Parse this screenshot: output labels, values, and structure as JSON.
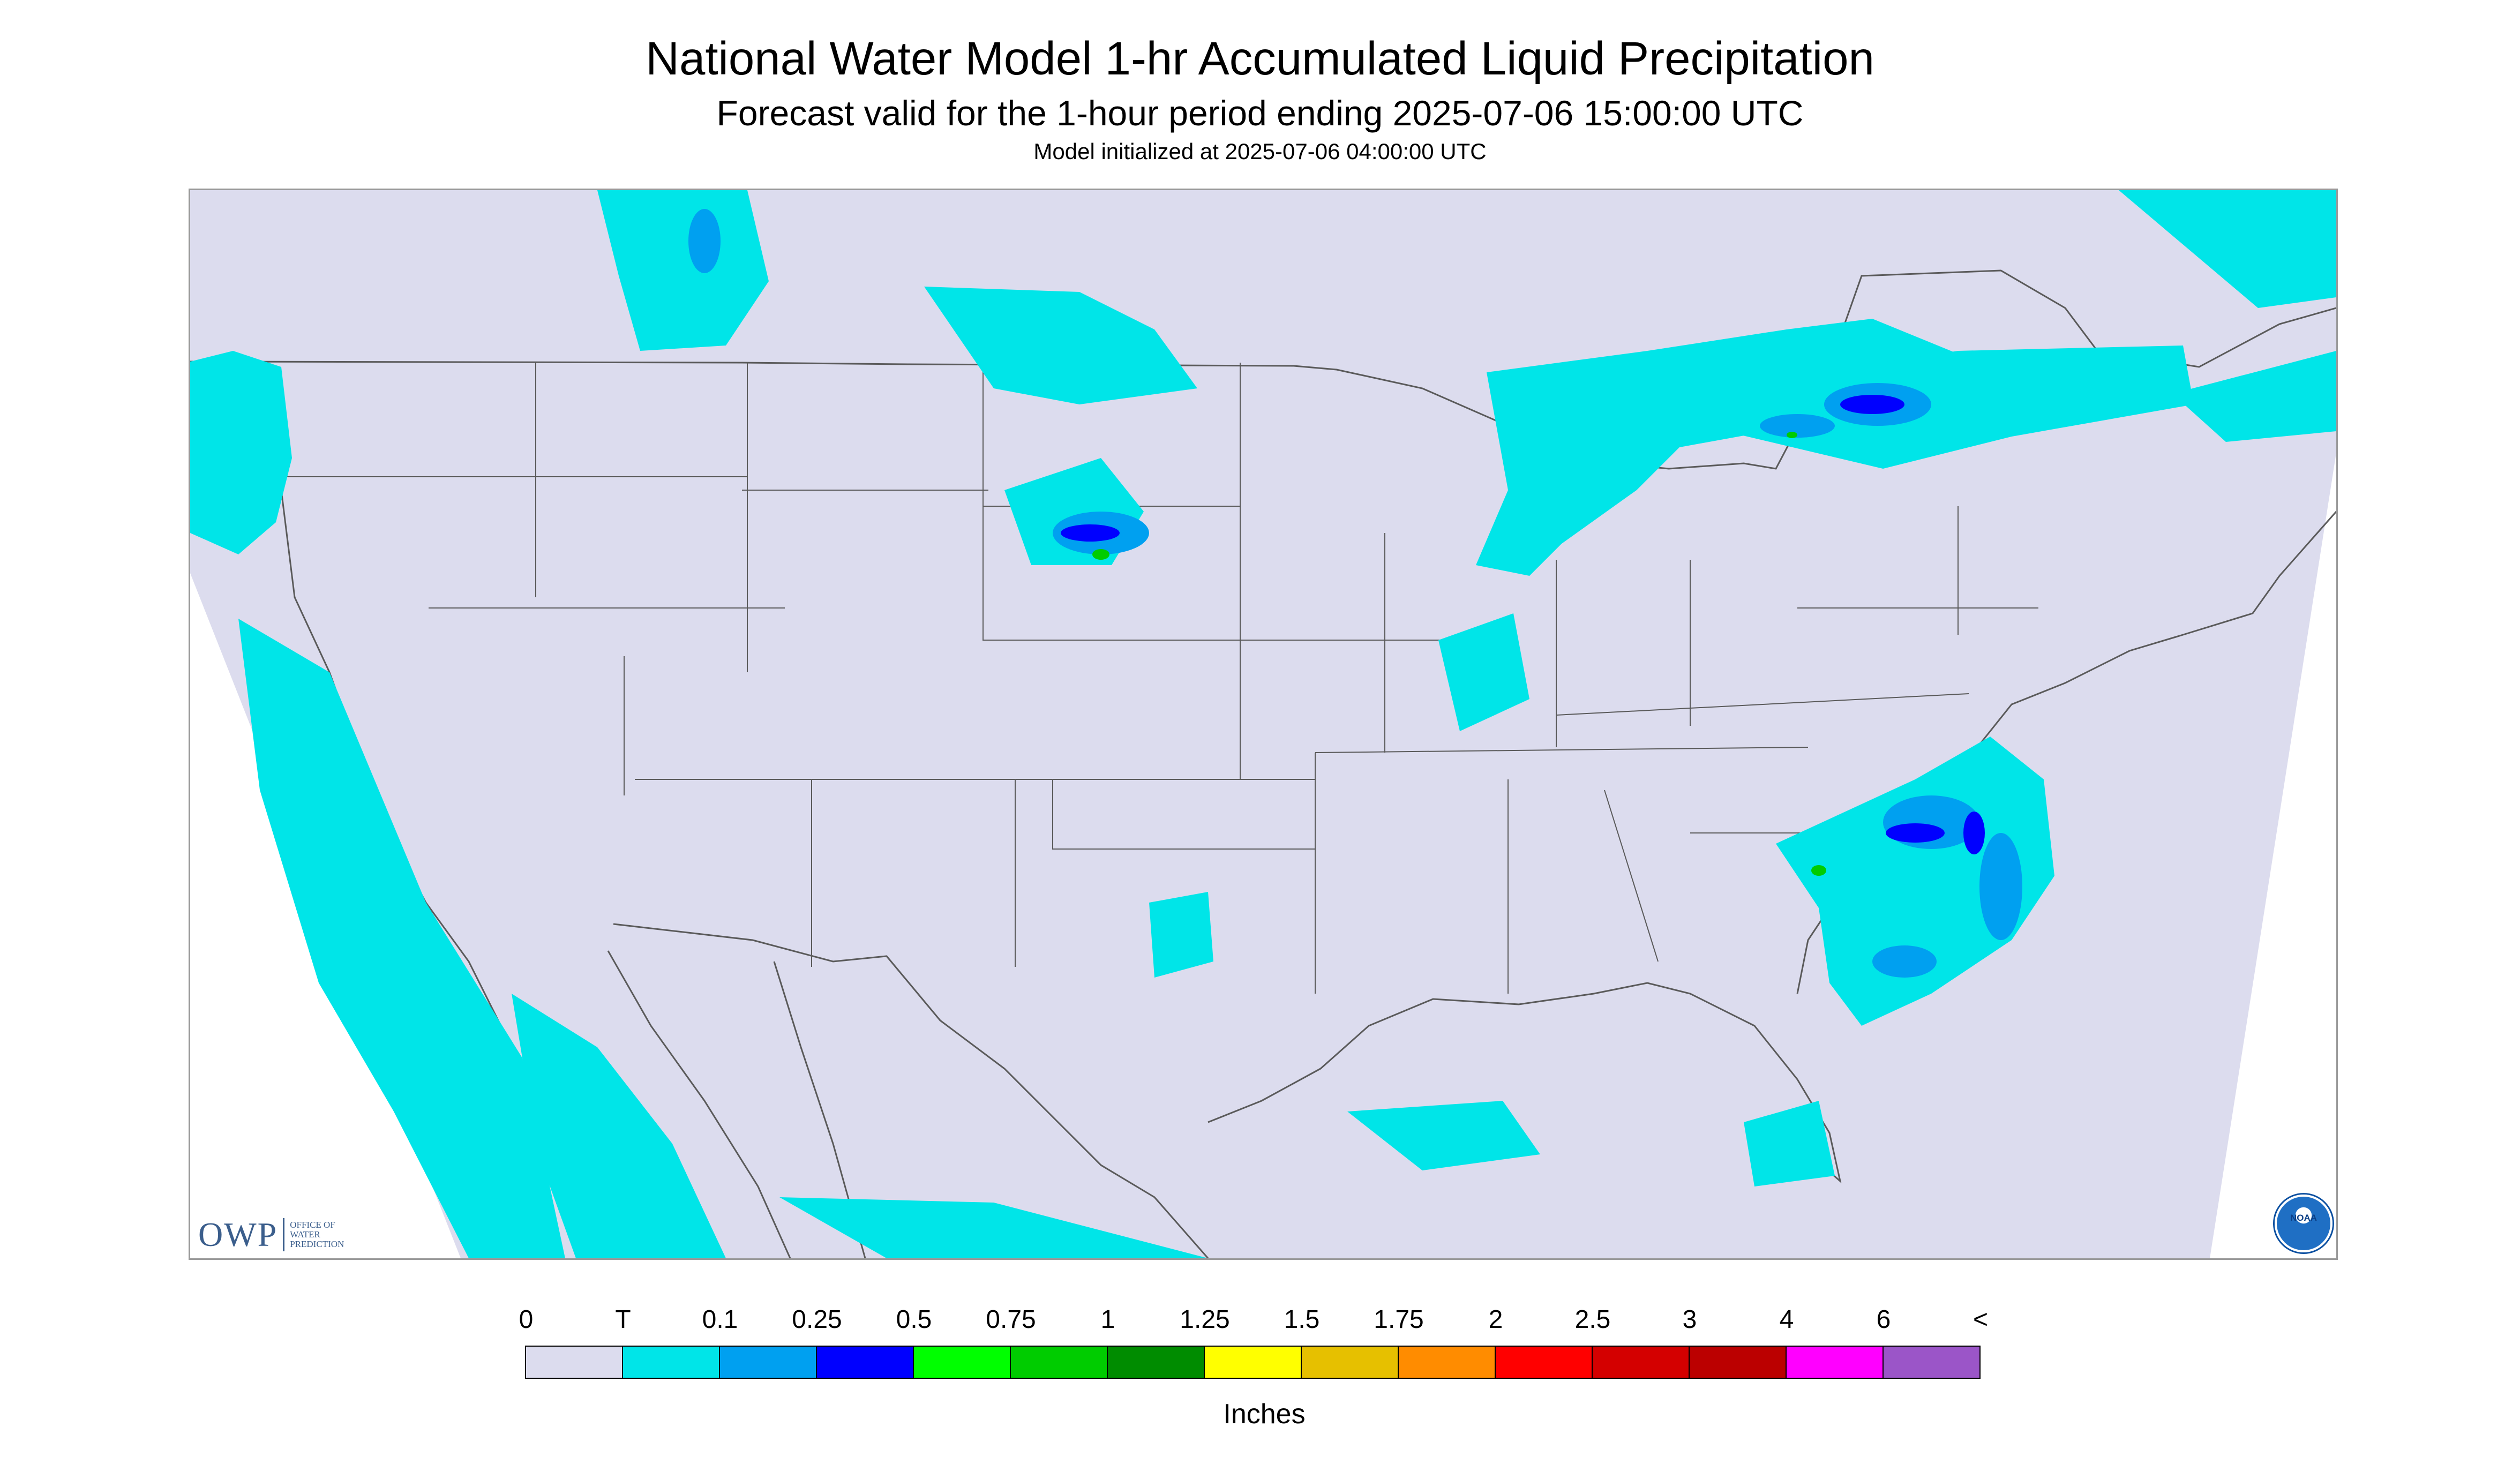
{
  "title": "National Water Model 1-hr Accumulated Liquid Precipitation",
  "subtitle": "Forecast valid for the 1-hour period ending 2025-07-06 15:00:00 UTC",
  "init_line": "Model initialized at 2025-07-06 04:00:00 UTC",
  "logo": {
    "owp_abbrev": "OWP",
    "owp_lines": [
      "Office of",
      "Water",
      "Prediction"
    ],
    "noaa_text": "NOAA"
  },
  "legend": {
    "unit_label": "Inches",
    "tick_labels": [
      "0",
      "T",
      "0.1",
      "0.25",
      "0.5",
      "0.75",
      "1",
      "1.25",
      "1.5",
      "1.75",
      "2",
      "2.5",
      "3",
      "4",
      "6",
      "<"
    ],
    "colors": [
      "#dcdcee",
      "#00e5e8",
      "#00a0f0",
      "#0000ff",
      "#00ff00",
      "#00cc00",
      "#008c00",
      "#ffff00",
      "#e6c000",
      "#ff8c00",
      "#ff0000",
      "#d40000",
      "#bb0000",
      "#ff00ff",
      "#9b55c8"
    ]
  },
  "map": {
    "background_color": "#dcdcee",
    "precip_colors": {
      "trace": "#00e5e8",
      "light": "#00a0f0",
      "moderate": "#0000ff",
      "heavy": "#00cc00"
    },
    "line_color": "#5a5a5a"
  }
}
